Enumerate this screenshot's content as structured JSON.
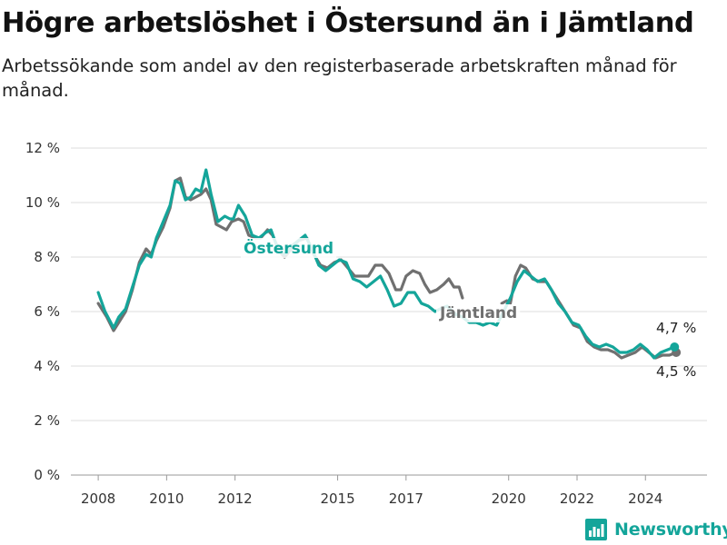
{
  "title": "Högre arbetslöshet i Östersund än i Jämtland",
  "subtitle": "Arbetssökande som andel av den registerbaserade arbetskraften månad för månad.",
  "brand": {
    "name": "Newsworthy",
    "color": "#14a59a",
    "icon": "bar-chart-logo-icon"
  },
  "chart_data": {
    "type": "line",
    "title": "",
    "xlabel": "",
    "ylabel": "",
    "ylim": [
      0,
      12
    ],
    "yticks": [
      0,
      2,
      4,
      6,
      8,
      10,
      12
    ],
    "ytick_labels": [
      "0 %",
      "2 %",
      "4 %",
      "6 %",
      "8 %",
      "10 %",
      "12 %"
    ],
    "xlim": [
      2007.2,
      2025.8
    ],
    "xticks": [
      2008,
      2010,
      2012,
      2015,
      2017,
      2020,
      2022,
      2024
    ],
    "xtick_labels": [
      "2008",
      "2010",
      "2012",
      "2015",
      "2017",
      "2020",
      "2022",
      "2024"
    ],
    "grid": "horizontal",
    "series": [
      {
        "name": "Jämtland",
        "color": "#707070",
        "end_label": "4,5 %",
        "points": [
          [
            2008.0,
            6.3
          ],
          [
            2008.25,
            5.8
          ],
          [
            2008.45,
            5.3
          ],
          [
            2008.6,
            5.6
          ],
          [
            2008.8,
            6.0
          ],
          [
            2009.0,
            6.8
          ],
          [
            2009.2,
            7.8
          ],
          [
            2009.4,
            8.3
          ],
          [
            2009.55,
            8.1
          ],
          [
            2009.7,
            8.6
          ],
          [
            2009.9,
            9.1
          ],
          [
            2010.1,
            9.8
          ],
          [
            2010.25,
            10.8
          ],
          [
            2010.4,
            10.9
          ],
          [
            2010.55,
            10.2
          ],
          [
            2010.7,
            10.1
          ],
          [
            2010.85,
            10.2
          ],
          [
            2011.0,
            10.3
          ],
          [
            2011.15,
            10.5
          ],
          [
            2011.3,
            10.1
          ],
          [
            2011.45,
            9.2
          ],
          [
            2011.6,
            9.1
          ],
          [
            2011.75,
            9.0
          ],
          [
            2011.9,
            9.3
          ],
          [
            2012.1,
            9.4
          ],
          [
            2012.25,
            9.3
          ],
          [
            2012.4,
            8.8
          ],
          [
            2012.6,
            8.7
          ],
          [
            2012.75,
            8.7
          ],
          [
            2012.95,
            9.0
          ],
          [
            2013.1,
            8.8
          ],
          [
            2013.3,
            8.2
          ],
          [
            2013.45,
            8.0
          ],
          [
            2013.65,
            8.3
          ],
          [
            2013.85,
            8.6
          ],
          [
            2014.1,
            8.7
          ],
          [
            2014.3,
            8.1
          ],
          [
            2014.5,
            7.7
          ],
          [
            2014.7,
            7.6
          ],
          [
            2014.9,
            7.8
          ],
          [
            2015.1,
            7.9
          ],
          [
            2015.3,
            7.6
          ],
          [
            2015.5,
            7.3
          ],
          [
            2015.7,
            7.3
          ],
          [
            2015.9,
            7.3
          ],
          [
            2016.1,
            7.7
          ],
          [
            2016.3,
            7.7
          ],
          [
            2016.5,
            7.4
          ],
          [
            2016.7,
            6.8
          ],
          [
            2016.85,
            6.8
          ],
          [
            2017.0,
            7.3
          ],
          [
            2017.2,
            7.5
          ],
          [
            2017.4,
            7.4
          ],
          [
            2017.55,
            7.0
          ],
          [
            2017.7,
            6.7
          ],
          [
            2017.9,
            6.8
          ],
          [
            2018.1,
            7.0
          ],
          [
            2018.25,
            7.2
          ],
          [
            2018.4,
            6.9
          ],
          [
            2018.55,
            6.9
          ],
          [
            2018.65,
            6.5
          ]
        ],
        "points_late": [
          [
            2019.8,
            6.3
          ],
          [
            2019.95,
            6.4
          ],
          [
            2020.05,
            6.3
          ],
          [
            2020.2,
            7.3
          ],
          [
            2020.35,
            7.7
          ],
          [
            2020.5,
            7.6
          ],
          [
            2020.7,
            7.2
          ],
          [
            2020.9,
            7.1
          ],
          [
            2021.1,
            7.1
          ],
          [
            2021.3,
            6.7
          ],
          [
            2021.5,
            6.3
          ],
          [
            2021.7,
            5.9
          ],
          [
            2021.9,
            5.5
          ],
          [
            2022.1,
            5.4
          ],
          [
            2022.3,
            4.9
          ],
          [
            2022.5,
            4.7
          ],
          [
            2022.7,
            4.6
          ],
          [
            2022.9,
            4.6
          ],
          [
            2023.1,
            4.5
          ],
          [
            2023.3,
            4.3
          ],
          [
            2023.5,
            4.4
          ],
          [
            2023.7,
            4.5
          ],
          [
            2023.9,
            4.7
          ],
          [
            2024.1,
            4.5
          ],
          [
            2024.3,
            4.3
          ],
          [
            2024.5,
            4.4
          ],
          [
            2024.7,
            4.4
          ],
          [
            2024.9,
            4.5
          ]
        ]
      },
      {
        "name": "Östersund",
        "color": "#14a59a",
        "end_label": "4,7 %",
        "points": [
          [
            2008.0,
            6.7
          ],
          [
            2008.2,
            6.0
          ],
          [
            2008.45,
            5.4
          ],
          [
            2008.6,
            5.8
          ],
          [
            2008.8,
            6.1
          ],
          [
            2009.0,
            6.9
          ],
          [
            2009.2,
            7.7
          ],
          [
            2009.4,
            8.1
          ],
          [
            2009.55,
            8.0
          ],
          [
            2009.7,
            8.7
          ],
          [
            2009.9,
            9.3
          ],
          [
            2010.1,
            9.9
          ],
          [
            2010.25,
            10.8
          ],
          [
            2010.4,
            10.7
          ],
          [
            2010.55,
            10.1
          ],
          [
            2010.7,
            10.2
          ],
          [
            2010.85,
            10.5
          ],
          [
            2011.0,
            10.4
          ],
          [
            2011.15,
            11.2
          ],
          [
            2011.3,
            10.3
          ],
          [
            2011.5,
            9.3
          ],
          [
            2011.7,
            9.5
          ],
          [
            2011.85,
            9.4
          ],
          [
            2011.95,
            9.4
          ],
          [
            2012.1,
            9.9
          ],
          [
            2012.3,
            9.5
          ],
          [
            2012.5,
            8.8
          ],
          [
            2012.7,
            8.7
          ],
          [
            2012.9,
            8.9
          ],
          [
            2013.05,
            9.0
          ],
          [
            2013.25,
            8.3
          ],
          [
            2013.45,
            8.1
          ],
          [
            2013.65,
            8.4
          ],
          [
            2013.85,
            8.6
          ],
          [
            2014.05,
            8.8
          ],
          [
            2014.25,
            8.3
          ],
          [
            2014.45,
            7.7
          ],
          [
            2014.65,
            7.5
          ],
          [
            2014.85,
            7.7
          ],
          [
            2015.05,
            7.9
          ],
          [
            2015.25,
            7.8
          ],
          [
            2015.45,
            7.2
          ],
          [
            2015.65,
            7.1
          ],
          [
            2015.85,
            6.9
          ],
          [
            2016.05,
            7.1
          ],
          [
            2016.25,
            7.3
          ],
          [
            2016.45,
            6.8
          ],
          [
            2016.65,
            6.2
          ],
          [
            2016.85,
            6.3
          ],
          [
            2017.05,
            6.7
          ],
          [
            2017.25,
            6.7
          ],
          [
            2017.45,
            6.3
          ],
          [
            2017.65,
            6.2
          ],
          [
            2017.85,
            6.0
          ],
          [
            2018.0,
            6.1
          ],
          [
            2018.2,
            6.2
          ],
          [
            2018.45,
            5.9
          ],
          [
            2018.65,
            5.8
          ],
          [
            2018.85,
            5.6
          ],
          [
            2019.05,
            5.6
          ],
          [
            2019.25,
            5.5
          ],
          [
            2019.45,
            5.6
          ],
          [
            2019.65,
            5.5
          ],
          [
            2019.85,
            6.0
          ],
          [
            2020.05,
            6.5
          ],
          [
            2020.25,
            7.1
          ],
          [
            2020.45,
            7.5
          ],
          [
            2020.65,
            7.3
          ],
          [
            2020.85,
            7.1
          ],
          [
            2021.05,
            7.2
          ],
          [
            2021.25,
            6.8
          ],
          [
            2021.45,
            6.3
          ],
          [
            2021.65,
            6.0
          ],
          [
            2021.85,
            5.6
          ],
          [
            2022.05,
            5.5
          ],
          [
            2022.25,
            5.1
          ],
          [
            2022.45,
            4.8
          ],
          [
            2022.65,
            4.7
          ],
          [
            2022.85,
            4.8
          ],
          [
            2023.05,
            4.7
          ],
          [
            2023.25,
            4.5
          ],
          [
            2023.45,
            4.5
          ],
          [
            2023.65,
            4.6
          ],
          [
            2023.85,
            4.8
          ],
          [
            2024.05,
            4.6
          ],
          [
            2024.25,
            4.3
          ],
          [
            2024.45,
            4.5
          ],
          [
            2024.65,
            4.6
          ],
          [
            2024.85,
            4.7
          ]
        ]
      }
    ]
  }
}
